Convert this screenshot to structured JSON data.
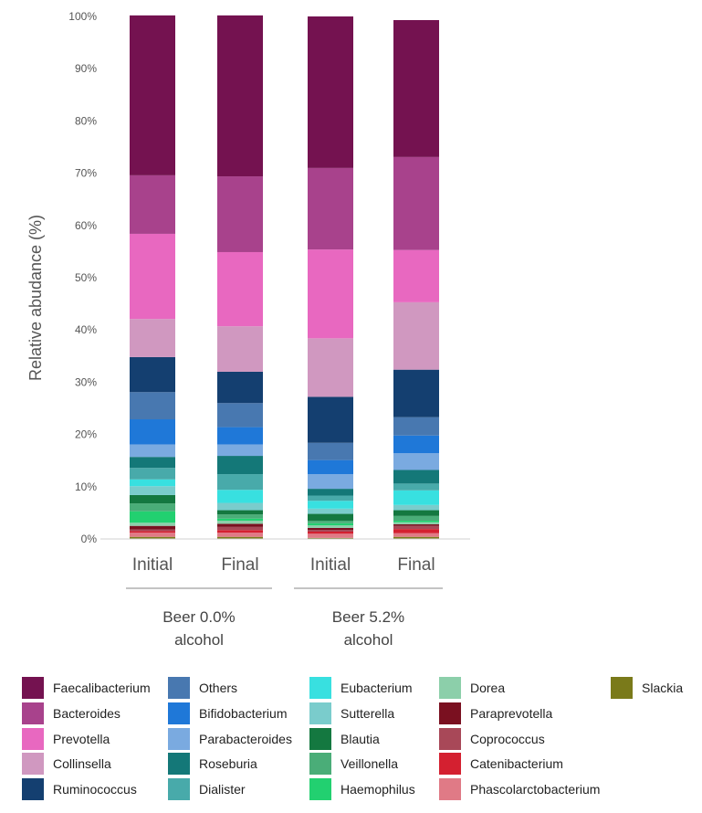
{
  "chart_data": {
    "type": "bar",
    "stacked": true,
    "ylabel": "Relative abudance (%)",
    "ylim": [
      0,
      100
    ],
    "yticks": [
      "0%",
      "10%",
      "20%",
      "30%",
      "40%",
      "50%",
      "60%",
      "70%",
      "80%",
      "90%",
      "100%"
    ],
    "categories": [
      "Initial",
      "Final",
      "Initial",
      "Final"
    ],
    "groups": [
      {
        "label_line1": "Beer 0.0%",
        "label_line2": "alcohol",
        "categories": [
          0,
          1
        ]
      },
      {
        "label_line1": "Beer 5.2%",
        "label_line2": "alcohol",
        "categories": [
          2,
          3
        ]
      }
    ],
    "grid": false,
    "legend_position": "bottom",
    "series": [
      {
        "name": "Slackia",
        "color": "#7a7a1a",
        "values": [
          0.4,
          0.4,
          0.2,
          0.4
        ]
      },
      {
        "name": "Phascolarctobacterium",
        "color": "#e07a86",
        "values": [
          0.8,
          0.8,
          0.8,
          0.7
        ]
      },
      {
        "name": "Catenibacterium",
        "color": "#d42030",
        "values": [
          0.3,
          0.5,
          0.4,
          0.8
        ]
      },
      {
        "name": "Coprococcus",
        "color": "#a84858",
        "values": [
          0.3,
          0.6,
          0.3,
          0.6
        ]
      },
      {
        "name": "Paraprevotella",
        "color": "#7a1020",
        "values": [
          0.7,
          0.6,
          0.4,
          0.3
        ]
      },
      {
        "name": "Dorea",
        "color": "#8ccfaa",
        "values": [
          0.6,
          0.6,
          0.5,
          0.4
        ]
      },
      {
        "name": "Haemophilus",
        "color": "#22d070",
        "values": [
          2.2,
          0.4,
          0.4,
          0.3
        ]
      },
      {
        "name": "Veillonella",
        "color": "#4aad78",
        "values": [
          1.5,
          0.8,
          0.5,
          0.9
        ]
      },
      {
        "name": "Blautia",
        "color": "#147840",
        "values": [
          1.6,
          0.8,
          1.3,
          1.1
        ]
      },
      {
        "name": "Sutterella",
        "color": "#7acccc",
        "values": [
          1.7,
          1.4,
          1.0,
          1.0
        ]
      },
      {
        "name": "Eubacterium",
        "color": "#38e0e0",
        "values": [
          1.3,
          2.5,
          1.5,
          2.8
        ]
      },
      {
        "name": "Dialister",
        "color": "#48aaaa",
        "values": [
          2.2,
          3.0,
          1.0,
          1.3
        ]
      },
      {
        "name": "Roseburia",
        "color": "#147878",
        "values": [
          2.1,
          3.5,
          1.3,
          2.6
        ]
      },
      {
        "name": "Parabacteroides",
        "color": "#7aaae0",
        "values": [
          2.4,
          2.2,
          2.8,
          3.2
        ]
      },
      {
        "name": "Bifidobacterium",
        "color": "#1f78d8",
        "values": [
          4.8,
          3.3,
          2.7,
          3.4
        ]
      },
      {
        "name": "Others",
        "color": "#4878b0",
        "values": [
          5.2,
          4.6,
          3.3,
          3.5
        ]
      },
      {
        "name": "Ruminococcus",
        "color": "#143f70",
        "values": [
          6.7,
          6.0,
          8.8,
          9.1
        ]
      },
      {
        "name": "Collinsella",
        "color": "#d098c0",
        "values": [
          7.3,
          8.7,
          11.2,
          12.9
        ]
      },
      {
        "name": "Prevotella",
        "color": "#e868c0",
        "values": [
          16.3,
          14.2,
          17.0,
          10.0
        ]
      },
      {
        "name": "Bacteroides",
        "color": "#a8428c",
        "values": [
          11.2,
          14.5,
          15.6,
          17.8
        ]
      },
      {
        "name": "Faecalibacterium",
        "color": "#741250",
        "values": [
          30.6,
          30.8,
          29.0,
          26.2
        ]
      }
    ]
  },
  "legend": {
    "items": [
      {
        "name": "Faecalibacterium",
        "color": "#741250"
      },
      {
        "name": "Bacteroides",
        "color": "#a8428c"
      },
      {
        "name": "Prevotella",
        "color": "#e868c0"
      },
      {
        "name": "Collinsella",
        "color": "#d098c0"
      },
      {
        "name": "Ruminococcus",
        "color": "#143f70"
      },
      {
        "name": "Others",
        "color": "#4878b0"
      },
      {
        "name": "Bifidobacterium",
        "color": "#1f78d8"
      },
      {
        "name": "Parabacteroides",
        "color": "#7aaae0"
      },
      {
        "name": "Roseburia",
        "color": "#147878"
      },
      {
        "name": "Dialister",
        "color": "#48aaaa"
      },
      {
        "name": "Eubacterium",
        "color": "#38e0e0"
      },
      {
        "name": "Sutterella",
        "color": "#7acccc"
      },
      {
        "name": "Blautia",
        "color": "#147840"
      },
      {
        "name": "Veillonella",
        "color": "#4aad78"
      },
      {
        "name": "Haemophilus",
        "color": "#22d070"
      },
      {
        "name": "Dorea",
        "color": "#8ccfaa"
      },
      {
        "name": "Paraprevotella",
        "color": "#7a1020"
      },
      {
        "name": "Coprococcus",
        "color": "#a84858"
      },
      {
        "name": "Catenibacterium",
        "color": "#d42030"
      },
      {
        "name": "Phascolarctobacterium",
        "color": "#e07a86"
      },
      {
        "name": "Slackia",
        "color": "#7a7a1a"
      }
    ]
  }
}
